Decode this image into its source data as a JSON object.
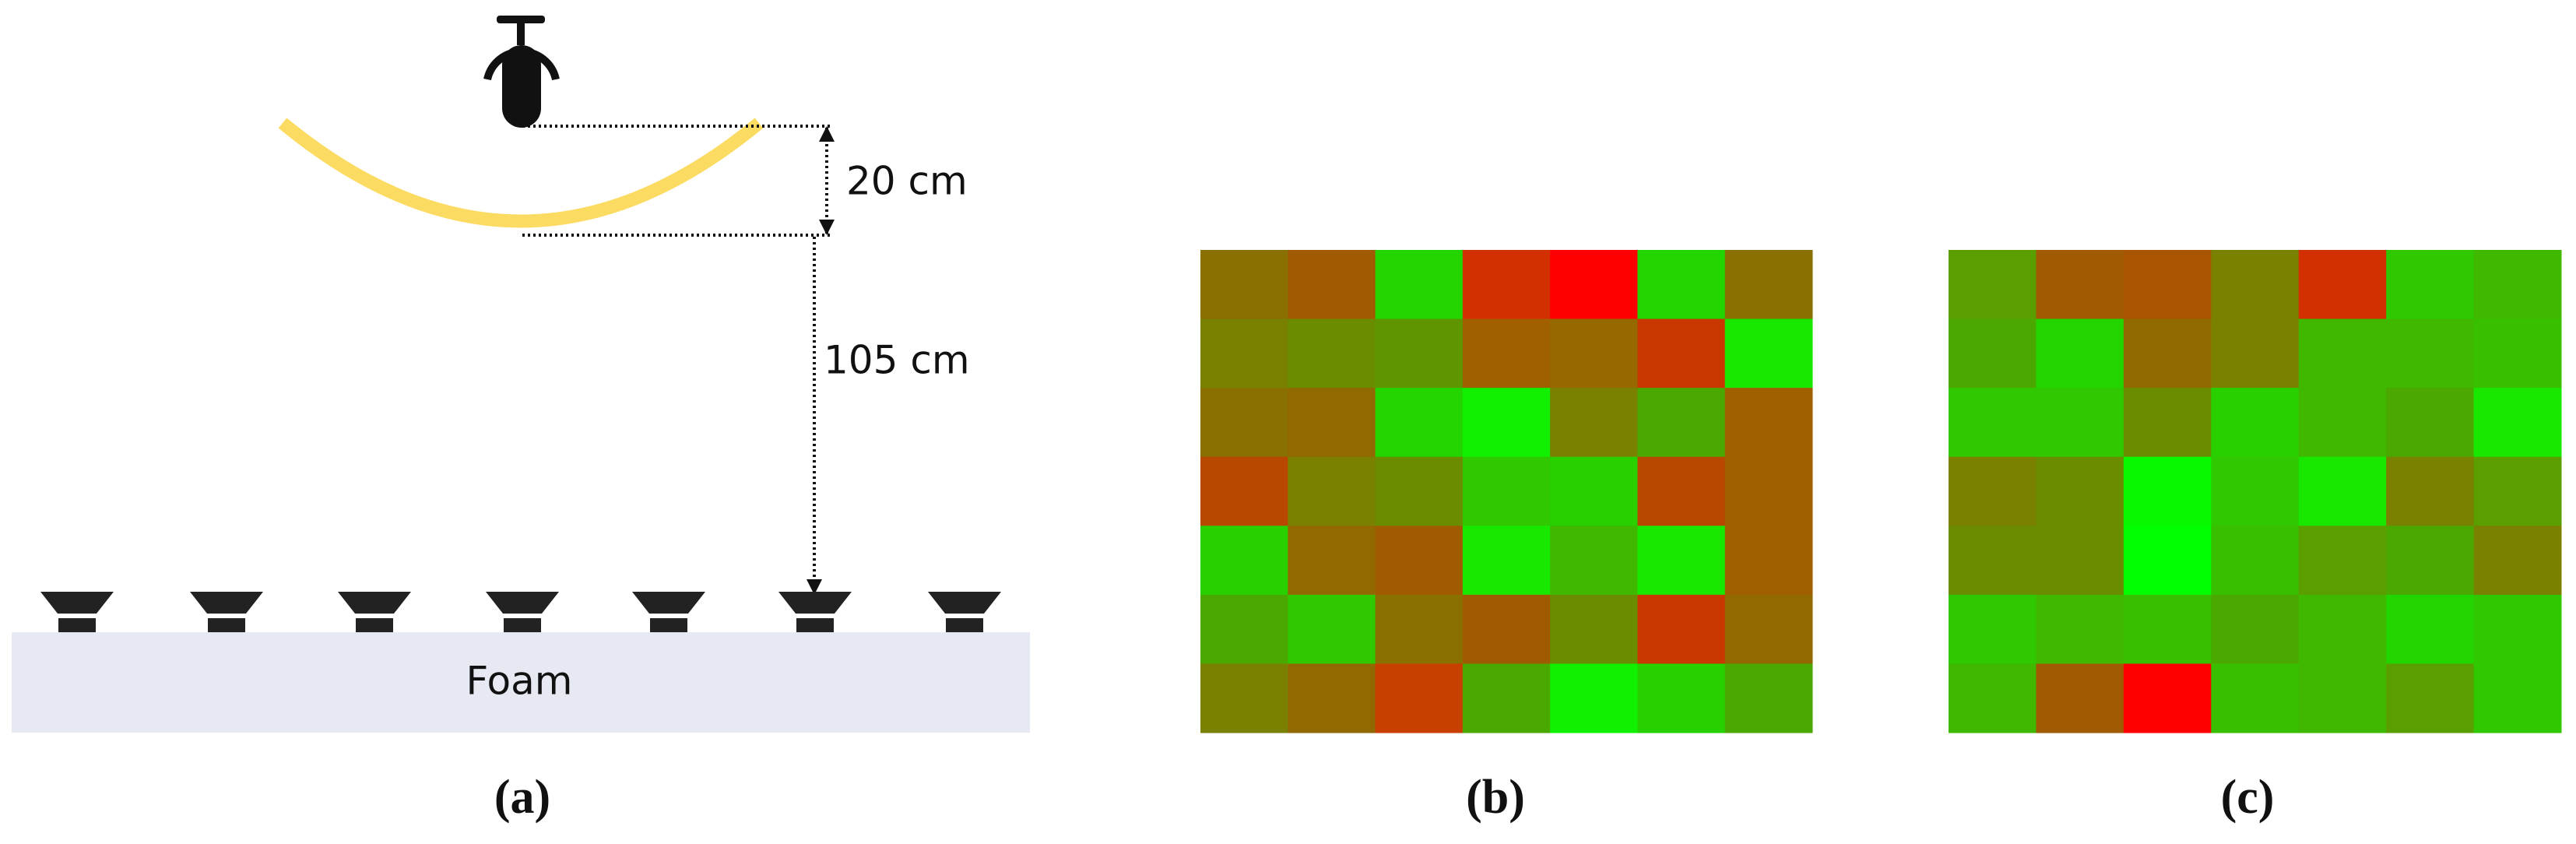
{
  "panel_a": {
    "top_distance": "20 cm",
    "drop_distance": "105 cm",
    "base": "Foam",
    "label": "(a)"
  },
  "panel_b": {
    "label": "(b)",
    "cells": [
      [
        "#8a7000",
        "#a05a00",
        "#22d400",
        "#d23000",
        "#ff0000",
        "#22d400",
        "#8a7000"
      ],
      [
        "#7a8000",
        "#6a8c00",
        "#5f9500",
        "#a06000",
        "#966800",
        "#c83800",
        "#18e800"
      ],
      [
        "#8a7000",
        "#926800",
        "#22d400",
        "#10f000",
        "#7a8000",
        "#4aa800",
        "#a06000"
      ],
      [
        "#b84800",
        "#7a8000",
        "#6a8c00",
        "#30c800",
        "#28d000",
        "#b84800",
        "#a06000"
      ],
      [
        "#28d000",
        "#926800",
        "#a05a00",
        "#18e800",
        "#40b800",
        "#18e800",
        "#a06000"
      ],
      [
        "#4aa800",
        "#30c800",
        "#8a7000",
        "#a05a00",
        "#6a8c00",
        "#c83800",
        "#926800"
      ],
      [
        "#7a8000",
        "#926800",
        "#c84000",
        "#4aa800",
        "#10f000",
        "#28d000",
        "#4aa800"
      ]
    ]
  },
  "panel_c": {
    "label": "(c)",
    "cells": [
      [
        "#5a9e00",
        "#a05a00",
        "#a85400",
        "#7a8000",
        "#d23000",
        "#30c800",
        "#40b800"
      ],
      [
        "#4aa800",
        "#22d400",
        "#906a00",
        "#7a8000",
        "#40b800",
        "#40b800",
        "#38c000"
      ],
      [
        "#30c800",
        "#30c800",
        "#6a8c00",
        "#28d000",
        "#40b800",
        "#4aa800",
        "#18e800"
      ],
      [
        "#7a8000",
        "#6a8c00",
        "#08f800",
        "#30c800",
        "#18e800",
        "#7a8000",
        "#5a9e00"
      ],
      [
        "#6a8c00",
        "#6a8c00",
        "#00ff00",
        "#38c000",
        "#5a9e00",
        "#4aa800",
        "#7a8000"
      ],
      [
        "#30c800",
        "#40b800",
        "#38c000",
        "#4aa800",
        "#40b800",
        "#22d400",
        "#30c800"
      ],
      [
        "#40b800",
        "#a05a00",
        "#ff0000",
        "#38c000",
        "#40b800",
        "#5a9e00",
        "#30c800"
      ]
    ]
  }
}
